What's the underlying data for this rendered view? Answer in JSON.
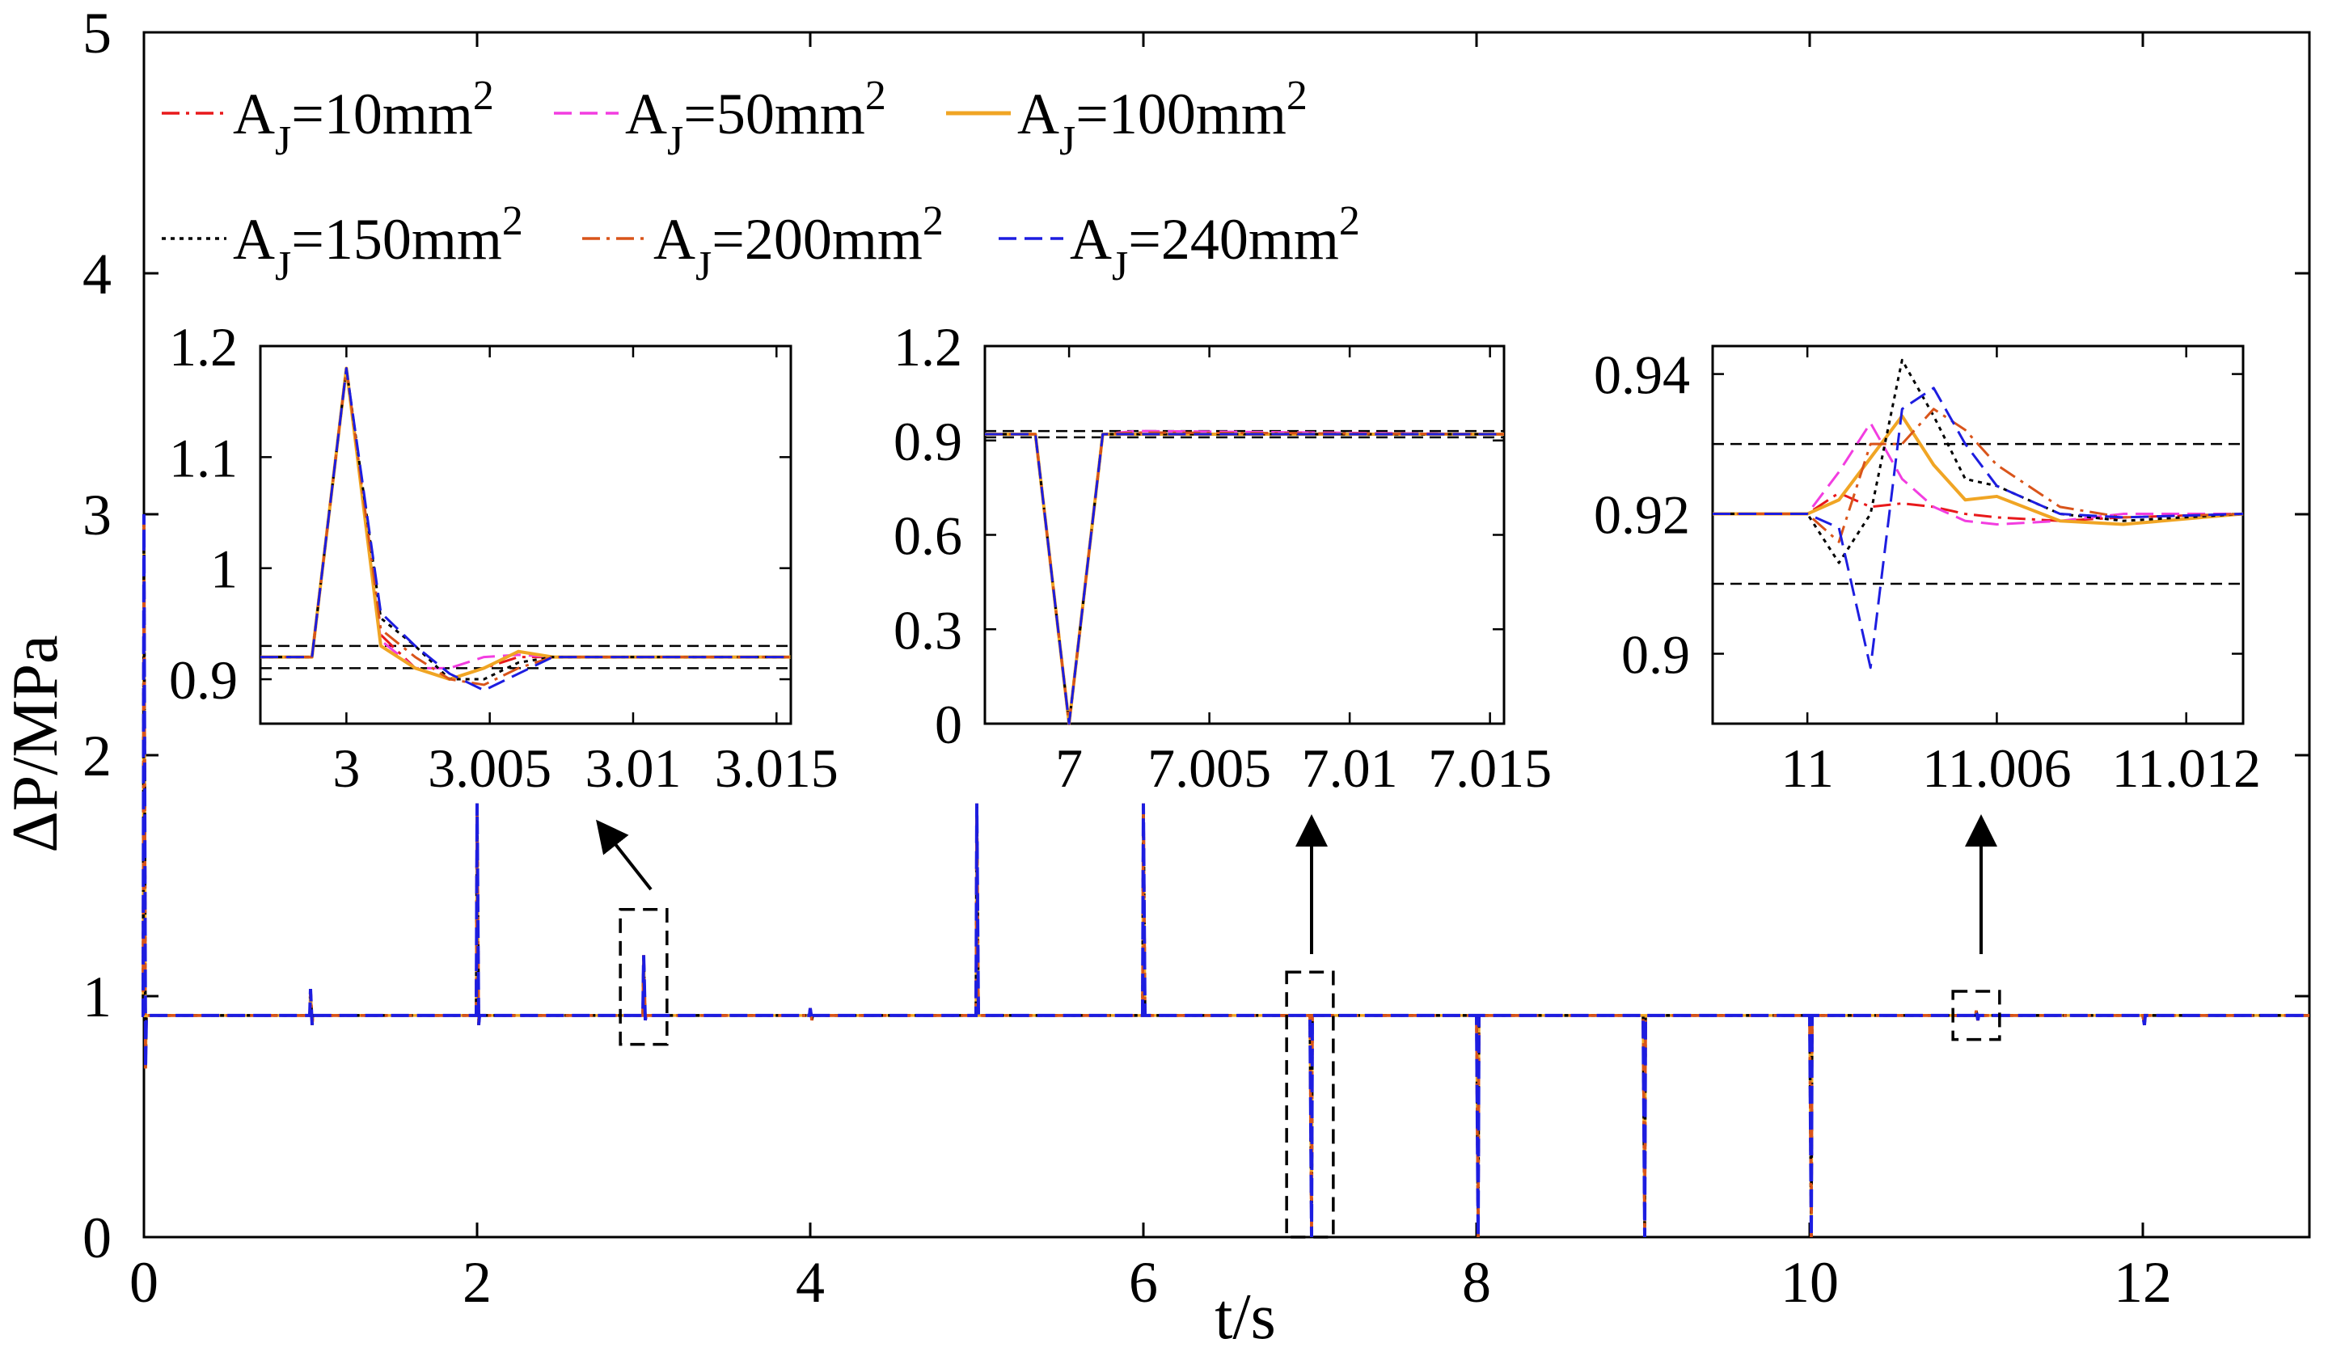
{
  "chart_data": {
    "type": "line",
    "xlabel": "t/s",
    "ylabel": "ΔP/MPa",
    "xlim": [
      0,
      13
    ],
    "ylim": [
      0,
      5
    ],
    "xticks": [
      0,
      2,
      4,
      6,
      8,
      10,
      12
    ],
    "yticks": [
      0,
      1,
      2,
      3,
      4,
      5
    ],
    "xtick_labels": [
      "0",
      "2",
      "4",
      "6",
      "8",
      "10",
      "12"
    ],
    "ytick_labels": [
      "0",
      "1",
      "2",
      "3",
      "4",
      "5"
    ],
    "baseline": 0.92,
    "legend": [
      {
        "prefix": "A",
        "sub": "J",
        "text": "=10mm",
        "sup": "2",
        "color": "#e8191b",
        "style": "dashdot"
      },
      {
        "prefix": "A",
        "sub": "J",
        "text": "=50mm",
        "sup": "2",
        "color": "#f23de0",
        "style": "dashed"
      },
      {
        "prefix": "A",
        "sub": "J",
        "text": "=100mm",
        "sup": "2",
        "color": "#f0a524",
        "style": "solid"
      },
      {
        "prefix": "A",
        "sub": "J",
        "text": "=150mm",
        "sup": "2",
        "color": "#000000",
        "style": "dotted"
      },
      {
        "prefix": "A",
        "sub": "J",
        "text": "=200mm",
        "sup": "2",
        "color": "#d9541a",
        "style": "dashdot"
      },
      {
        "prefix": "A",
        "sub": "J",
        "text": "=240mm",
        "sup": "2",
        "color": "#1d1de0",
        "style": "dashed"
      }
    ],
    "main_series": {
      "baseline": 0.92,
      "events": [
        {
          "t": 0.0,
          "peak": 3.0,
          "low": 0.7
        },
        {
          "t": 1.0,
          "peak": 1.03,
          "low": 0.88
        },
        {
          "t": 2.0,
          "peak": 1.8,
          "low": 0.88
        },
        {
          "t": 3.0,
          "peak": 1.17,
          "low": 0.9
        },
        {
          "t": 4.0,
          "peak": 0.95,
          "low": 0.9
        },
        {
          "t": 5.0,
          "peak": 1.8,
          "low": 0.92
        },
        {
          "t": 6.0,
          "peak": 1.8,
          "low": 0.92
        },
        {
          "t": 7.0,
          "peak": 0.92,
          "low": 0.0
        },
        {
          "t": 8.0,
          "peak": 0.92,
          "low": 0.0
        },
        {
          "t": 9.0,
          "peak": 0.92,
          "low": 0.0
        },
        {
          "t": 10.0,
          "peak": 0.92,
          "low": 0.0
        },
        {
          "t": 11.0,
          "peak": 0.94,
          "low": 0.9
        },
        {
          "t": 12.0,
          "peak": 0.92,
          "low": 0.88
        }
      ]
    },
    "zoom_boxes": [
      {
        "t0": 2.86,
        "t1": 3.14,
        "y0": 0.8,
        "y1": 1.36
      },
      {
        "t0": 6.86,
        "t1": 7.14,
        "y0": 0.0,
        "y1": 1.1
      },
      {
        "t0": 10.86,
        "t1": 11.14,
        "y0": 0.82,
        "y1": 1.02
      }
    ],
    "insets": [
      {
        "name": "inset-1",
        "xlim": [
          2.997,
          3.0155
        ],
        "ylim": [
          0.86,
          1.2
        ],
        "xticks": [
          3,
          3.005,
          3.01,
          3.015
        ],
        "xtick_labels": [
          "3",
          "3.005",
          "3.01",
          "3.015"
        ],
        "yticks": [
          0.9,
          1,
          1.1,
          1.2
        ],
        "ytick_labels": [
          "0.9",
          "1",
          "1.1",
          "1.2"
        ],
        "ref_lines": [
          0.93,
          0.91
        ],
        "x": [
          2.997,
          2.9988,
          3.0,
          3.0012,
          3.0024,
          3.0036,
          3.0048,
          3.006,
          3.0072,
          3.0084,
          3.0155
        ],
        "series": [
          {
            "name": "A_J=10mm2",
            "values": [
              0.92,
              0.92,
              1.18,
              0.94,
              0.91,
              0.9,
              0.91,
              0.92,
              0.92,
              0.92,
              0.92
            ]
          },
          {
            "name": "A_J=50mm2",
            "values": [
              0.92,
              0.92,
              1.18,
              0.935,
              0.91,
              0.91,
              0.92,
              0.922,
              0.92,
              0.92,
              0.92
            ]
          },
          {
            "name": "A_J=100mm2",
            "values": [
              0.92,
              0.92,
              1.18,
              0.93,
              0.91,
              0.9,
              0.91,
              0.925,
              0.92,
              0.92,
              0.92
            ]
          },
          {
            "name": "A_J=150mm2",
            "values": [
              0.92,
              0.92,
              1.18,
              0.955,
              0.93,
              0.9,
              0.9,
              0.915,
              0.92,
              0.92,
              0.92
            ]
          },
          {
            "name": "A_J=200mm2",
            "values": [
              0.92,
              0.92,
              1.18,
              0.945,
              0.92,
              0.9,
              0.895,
              0.91,
              0.92,
              0.92,
              0.92
            ]
          },
          {
            "name": "A_J=240mm2",
            "values": [
              0.92,
              0.92,
              1.18,
              0.96,
              0.93,
              0.905,
              0.89,
              0.905,
              0.92,
              0.92,
              0.92
            ]
          }
        ]
      },
      {
        "name": "inset-2",
        "xlim": [
          6.997,
          7.0155
        ],
        "ylim": [
          0,
          1.2
        ],
        "xticks": [
          7,
          7.005,
          7.01,
          7.015
        ],
        "xtick_labels": [
          "7",
          "7.005",
          "7.01",
          "7.015"
        ],
        "yticks": [
          0,
          0.3,
          0.6,
          0.9,
          1.2
        ],
        "ytick_labels": [
          "0",
          "0.3",
          "0.6",
          "0.9",
          "1.2"
        ],
        "ref_lines": [
          0.93,
          0.91
        ],
        "x": [
          6.997,
          6.9988,
          7.0,
          7.0012,
          7.0024,
          7.0155
        ],
        "series": [
          {
            "name": "A_J=10mm2",
            "values": [
              0.92,
              0.92,
              0.0,
              0.92,
              0.925,
              0.92
            ]
          },
          {
            "name": "A_J=50mm2",
            "values": [
              0.92,
              0.92,
              0.0,
              0.92,
              0.93,
              0.92
            ]
          },
          {
            "name": "A_J=100mm2",
            "values": [
              0.92,
              0.92,
              0.0,
              0.92,
              0.92,
              0.92
            ]
          },
          {
            "name": "A_J=150mm2",
            "values": [
              0.92,
              0.92,
              0.0,
              0.92,
              0.92,
              0.92
            ]
          },
          {
            "name": "A_J=200mm2",
            "values": [
              0.92,
              0.92,
              0.0,
              0.92,
              0.925,
              0.92
            ]
          },
          {
            "name": "A_J=240mm2",
            "values": [
              0.92,
              0.92,
              0.0,
              0.92,
              0.92,
              0.92
            ]
          }
        ]
      },
      {
        "name": "inset-3",
        "xlim": [
          10.997,
          11.0138
        ],
        "ylim": [
          0.89,
          0.944
        ],
        "xticks": [
          11,
          11.006,
          11.012
        ],
        "xtick_labels": [
          "11",
          "11.006",
          "11.012"
        ],
        "yticks": [
          0.9,
          0.92,
          0.94
        ],
        "ytick_labels": [
          "0.9",
          "0.92",
          "0.94"
        ],
        "ref_lines": [
          0.93,
          0.91
        ],
        "x": [
          10.997,
          11.0,
          11.001,
          11.002,
          11.003,
          11.004,
          11.005,
          11.006,
          11.008,
          11.01,
          11.0138
        ],
        "series": [
          {
            "name": "A_J=10mm2",
            "values": [
              0.92,
              0.92,
              0.923,
              0.921,
              0.9215,
              0.921,
              0.92,
              0.9195,
              0.919,
              0.9195,
              0.92
            ]
          },
          {
            "name": "A_J=50mm2",
            "values": [
              0.92,
              0.92,
              0.926,
              0.933,
              0.925,
              0.921,
              0.919,
              0.9185,
              0.919,
              0.92,
              0.92
            ]
          },
          {
            "name": "A_J=100mm2",
            "values": [
              0.92,
              0.92,
              0.922,
              0.928,
              0.934,
              0.927,
              0.922,
              0.9225,
              0.919,
              0.9185,
              0.92
            ]
          },
          {
            "name": "A_J=150mm2",
            "values": [
              0.92,
              0.92,
              0.913,
              0.92,
              0.942,
              0.934,
              0.925,
              0.924,
              0.92,
              0.919,
              0.92
            ]
          },
          {
            "name": "A_J=200mm2",
            "values": [
              0.92,
              0.92,
              0.916,
              0.93,
              0.93,
              0.935,
              0.932,
              0.927,
              0.921,
              0.9195,
              0.92
            ]
          },
          {
            "name": "A_J=240mm2",
            "values": [
              0.92,
              0.92,
              0.918,
              0.898,
              0.935,
              0.938,
              0.93,
              0.924,
              0.92,
              0.9195,
              0.92
            ]
          }
        ]
      }
    ]
  }
}
